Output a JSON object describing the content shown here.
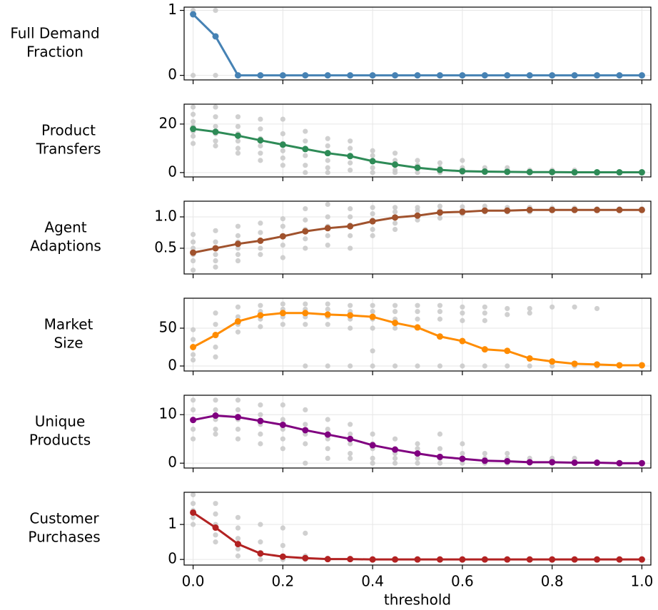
{
  "chart_data": [
    {
      "type": "line",
      "ylabel": [
        "Full Demand",
        "Fraction"
      ],
      "color": "#4682b4",
      "x": [
        0,
        0.05,
        0.1,
        0.15,
        0.2,
        0.25,
        0.3,
        0.35,
        0.4,
        0.45,
        0.5,
        0.55,
        0.6,
        0.65,
        0.7,
        0.75,
        0.8,
        0.85,
        0.9,
        0.95,
        1.0
      ],
      "values": [
        0.94,
        0.6,
        0,
        0,
        0,
        0,
        0,
        0,
        0,
        0,
        0,
        0,
        0,
        0,
        0,
        0,
        0,
        0,
        0,
        0,
        0
      ],
      "spread": [
        [
          1,
          0
        ],
        [
          1,
          0
        ],
        [
          0
        ],
        [
          0
        ],
        [
          0
        ],
        [
          0
        ],
        [
          0
        ],
        [
          0
        ],
        [
          0
        ],
        [
          0
        ],
        [
          0
        ],
        [
          0
        ],
        [
          0
        ],
        [
          0
        ],
        [
          0
        ],
        [
          0
        ],
        [
          0
        ],
        [
          0
        ],
        [
          0
        ],
        [
          0
        ],
        [
          0
        ]
      ],
      "xlim": [
        -0.02,
        1.02
      ],
      "ylim": [
        -0.07,
        1.05
      ],
      "yticks": [
        0,
        1
      ],
      "grid": true
    },
    {
      "type": "line",
      "ylabel": [
        "Product",
        "Transfers"
      ],
      "color": "#2e8b57",
      "x": [
        0,
        0.05,
        0.1,
        0.15,
        0.2,
        0.25,
        0.3,
        0.35,
        0.4,
        0.45,
        0.5,
        0.55,
        0.6,
        0.65,
        0.7,
        0.75,
        0.8,
        0.85,
        0.9,
        0.95,
        1.0
      ],
      "values": [
        18,
        16.8,
        15.2,
        13.3,
        11.5,
        9.7,
        8.0,
        6.8,
        4.7,
        3.3,
        2.0,
        1.1,
        0.6,
        0.4,
        0.3,
        0.2,
        0.2,
        0.1,
        0.1,
        0.1,
        0.1
      ],
      "spread": [
        [
          27,
          24,
          21,
          19,
          17,
          15,
          12
        ],
        [
          27,
          23,
          19,
          16,
          13,
          11
        ],
        [
          23,
          19,
          16,
          13,
          10,
          8
        ],
        [
          22,
          18,
          14,
          11,
          8,
          5
        ],
        [
          22,
          16,
          12,
          9,
          6,
          3
        ],
        [
          17,
          13,
          10,
          7,
          3,
          0
        ],
        [
          14,
          11,
          8,
          5,
          2,
          0
        ],
        [
          13,
          10,
          7,
          4,
          1
        ],
        [
          9,
          7,
          5,
          2,
          0
        ],
        [
          8,
          5,
          3,
          1,
          0
        ],
        [
          5,
          3,
          2,
          0
        ],
        [
          4,
          2,
          1,
          0
        ],
        [
          5,
          2,
          0
        ],
        [
          2,
          1,
          0
        ],
        [
          2,
          1,
          0
        ],
        [
          1,
          0
        ],
        [
          1,
          0
        ],
        [
          1,
          0
        ],
        [
          0
        ],
        [
          0
        ],
        [
          0
        ]
      ],
      "xlim": [
        -0.02,
        1.02
      ],
      "ylim": [
        -1.8,
        28.2
      ],
      "yticks": [
        0,
        20
      ],
      "grid": true
    },
    {
      "type": "line",
      "ylabel": [
        "Agent",
        "Adaptions"
      ],
      "color": "#a0522d",
      "x": [
        0,
        0.05,
        0.1,
        0.15,
        0.2,
        0.25,
        0.3,
        0.35,
        0.4,
        0.45,
        0.5,
        0.55,
        0.6,
        0.65,
        0.7,
        0.75,
        0.8,
        0.85,
        0.9,
        0.95,
        1.0
      ],
      "values": [
        0.43,
        0.5,
        0.57,
        0.62,
        0.69,
        0.77,
        0.82,
        0.85,
        0.93,
        0.99,
        1.02,
        1.07,
        1.08,
        1.1,
        1.1,
        1.11,
        1.11,
        1.11,
        1.11,
        1.11,
        1.11
      ],
      "spread": [
        [
          0.72,
          0.6,
          0.5,
          0.4,
          0.3,
          0.15
        ],
        [
          0.78,
          0.6,
          0.5,
          0.4,
          0.3,
          0.2
        ],
        [
          0.85,
          0.7,
          0.6,
          0.5,
          0.4,
          0.3
        ],
        [
          0.9,
          0.75,
          0.62,
          0.5,
          0.4
        ],
        [
          0.97,
          0.85,
          0.7,
          0.55,
          0.35
        ],
        [
          1.13,
          0.95,
          0.8,
          0.65,
          0.5
        ],
        [
          1.2,
          1.0,
          0.85,
          0.7,
          0.55
        ],
        [
          1.13,
          1.0,
          0.87,
          0.7,
          0.5
        ],
        [
          1.15,
          1.05,
          0.95,
          0.8,
          0.7
        ],
        [
          1.15,
          1.08,
          1.0,
          0.9,
          0.8
        ],
        [
          1.15,
          1.1,
          1.03,
          0.95
        ],
        [
          1.17,
          1.1,
          1.05,
          0.98
        ],
        [
          1.16,
          1.1,
          1.05
        ],
        [
          1.17,
          1.12,
          1.08
        ],
        [
          1.15,
          1.12,
          1.08
        ],
        [
          1.15,
          1.12,
          1.08
        ],
        [
          1.14,
          1.11
        ],
        [
          1.14,
          1.11
        ],
        [
          1.13,
          1.11
        ],
        [
          1.13,
          1.11
        ],
        [
          1.13,
          1.11
        ]
      ],
      "xlim": [
        -0.02,
        1.02
      ],
      "ylim": [
        0.09,
        1.25
      ],
      "yticks": [
        0.5,
        {
          "value": 1,
          "label": "1.0"
        }
      ],
      "grid": true
    },
    {
      "type": "line",
      "ylabel": [
        "Market",
        "Size"
      ],
      "color": "#ff8c00",
      "x": [
        0,
        0.05,
        0.1,
        0.15,
        0.2,
        0.25,
        0.3,
        0.35,
        0.4,
        0.45,
        0.5,
        0.55,
        0.6,
        0.65,
        0.7,
        0.75,
        0.8,
        0.85,
        0.9,
        0.95,
        1.0
      ],
      "values": [
        25,
        41,
        59,
        67,
        70,
        70,
        68,
        67,
        65,
        57,
        51,
        39,
        33,
        22,
        20,
        10,
        6,
        3,
        2,
        1,
        1
      ],
      "spread": [
        [
          48,
          35,
          25,
          15,
          8
        ],
        [
          70,
          55,
          40,
          25,
          12
        ],
        [
          78,
          65,
          55,
          45
        ],
        [
          80,
          72,
          62,
          52
        ],
        [
          82,
          75,
          65,
          55
        ],
        [
          82,
          75,
          65,
          55,
          0
        ],
        [
          82,
          75,
          65,
          55,
          0
        ],
        [
          80,
          72,
          62,
          50,
          0
        ],
        [
          80,
          72,
          62,
          50,
          20,
          0
        ],
        [
          80,
          72,
          62,
          50,
          0
        ],
        [
          80,
          72,
          62,
          0
        ],
        [
          80,
          72,
          62,
          0
        ],
        [
          78,
          70,
          60,
          0
        ],
        [
          78,
          70,
          60,
          0
        ],
        [
          76,
          68,
          0
        ],
        [
          76,
          70,
          0
        ],
        [
          78,
          0
        ],
        [
          78,
          0
        ],
        [
          76,
          0
        ],
        [
          0
        ],
        [
          0
        ]
      ],
      "xlim": [
        -0.02,
        1.02
      ],
      "ylim": [
        -6.6,
        89.6
      ],
      "yticks": [
        0,
        50
      ],
      "grid": true
    },
    {
      "type": "line",
      "ylabel": [
        "Unique",
        "Products"
      ],
      "color": "#800080",
      "x": [
        0,
        0.05,
        0.1,
        0.15,
        0.2,
        0.25,
        0.3,
        0.35,
        0.4,
        0.45,
        0.5,
        0.55,
        0.6,
        0.65,
        0.7,
        0.75,
        0.8,
        0.85,
        0.9,
        0.95,
        1.0
      ],
      "values": [
        8.9,
        9.8,
        9.5,
        8.7,
        7.9,
        6.8,
        5.9,
        5.0,
        3.7,
        2.8,
        2.0,
        1.3,
        0.9,
        0.5,
        0.4,
        0.2,
        0.2,
        0.1,
        0.1,
        0,
        0
      ],
      "spread": [
        [
          13,
          11,
          9,
          7,
          5
        ],
        [
          13,
          11,
          9,
          7,
          6
        ],
        [
          13,
          11,
          9,
          7,
          5
        ],
        [
          12,
          10,
          8,
          6,
          4
        ],
        [
          12,
          9,
          7,
          5,
          3
        ],
        [
          11,
          8,
          6,
          4,
          0
        ],
        [
          9,
          7,
          5,
          3,
          1
        ],
        [
          8,
          6,
          4,
          2,
          1
        ],
        [
          6,
          4,
          3,
          1,
          0
        ],
        [
          5,
          3,
          2,
          1,
          0
        ],
        [
          4,
          3,
          1,
          0
        ],
        [
          6,
          3,
          1,
          0
        ],
        [
          4,
          2,
          1,
          0
        ],
        [
          2,
          1,
          0
        ],
        [
          2,
          1,
          0
        ],
        [
          1,
          0
        ],
        [
          1,
          0
        ],
        [
          1,
          0
        ],
        [
          0
        ],
        [
          0
        ],
        [
          0
        ]
      ],
      "xlim": [
        -0.02,
        1.02
      ],
      "ylim": [
        -1,
        14
      ],
      "yticks": [
        0,
        10
      ],
      "grid": true
    },
    {
      "type": "line",
      "ylabel": [
        "Customer",
        "Purchases"
      ],
      "color": "#b22222",
      "xlabel": "threshold",
      "x": [
        0,
        0.05,
        0.1,
        0.15,
        0.2,
        0.25,
        0.3,
        0.35,
        0.4,
        0.45,
        0.5,
        0.55,
        0.6,
        0.65,
        0.7,
        0.75,
        0.8,
        0.85,
        0.9,
        0.95,
        1.0
      ],
      "values": [
        1.34,
        0.91,
        0.44,
        0.17,
        0.08,
        0.04,
        0.01,
        0.01,
        0,
        0,
        0,
        0,
        0,
        0,
        0,
        0,
        0,
        0,
        0,
        0,
        0
      ],
      "spread": [
        [
          1.85,
          1.6,
          1.4,
          1.2,
          1.0
        ],
        [
          1.6,
          1.3,
          1.0,
          0.7,
          0.5
        ],
        [
          1.2,
          0.9,
          0.6,
          0.3,
          0.1
        ],
        [
          1.0,
          0.5,
          0.2,
          0
        ],
        [
          0.9,
          0.4,
          0.1,
          0
        ],
        [
          0.75,
          0.1,
          0
        ],
        [
          0
        ],
        [
          0
        ],
        [
          0
        ],
        [
          0
        ],
        [
          0
        ],
        [
          0
        ],
        [
          0
        ],
        [
          0
        ],
        [
          0
        ],
        [
          0
        ],
        [
          0
        ],
        [
          0
        ],
        [
          0
        ],
        [
          0
        ],
        [
          0
        ]
      ],
      "xlim": [
        -0.02,
        1.02
      ],
      "ylim": [
        -0.16,
        1.92
      ],
      "yticks": [
        0,
        1
      ],
      "xticks": [
        {
          "value": 0,
          "label": "0.0"
        },
        0.2,
        0.4,
        0.6,
        0.8,
        {
          "value": 1,
          "label": "1.0"
        }
      ],
      "grid": true
    }
  ]
}
